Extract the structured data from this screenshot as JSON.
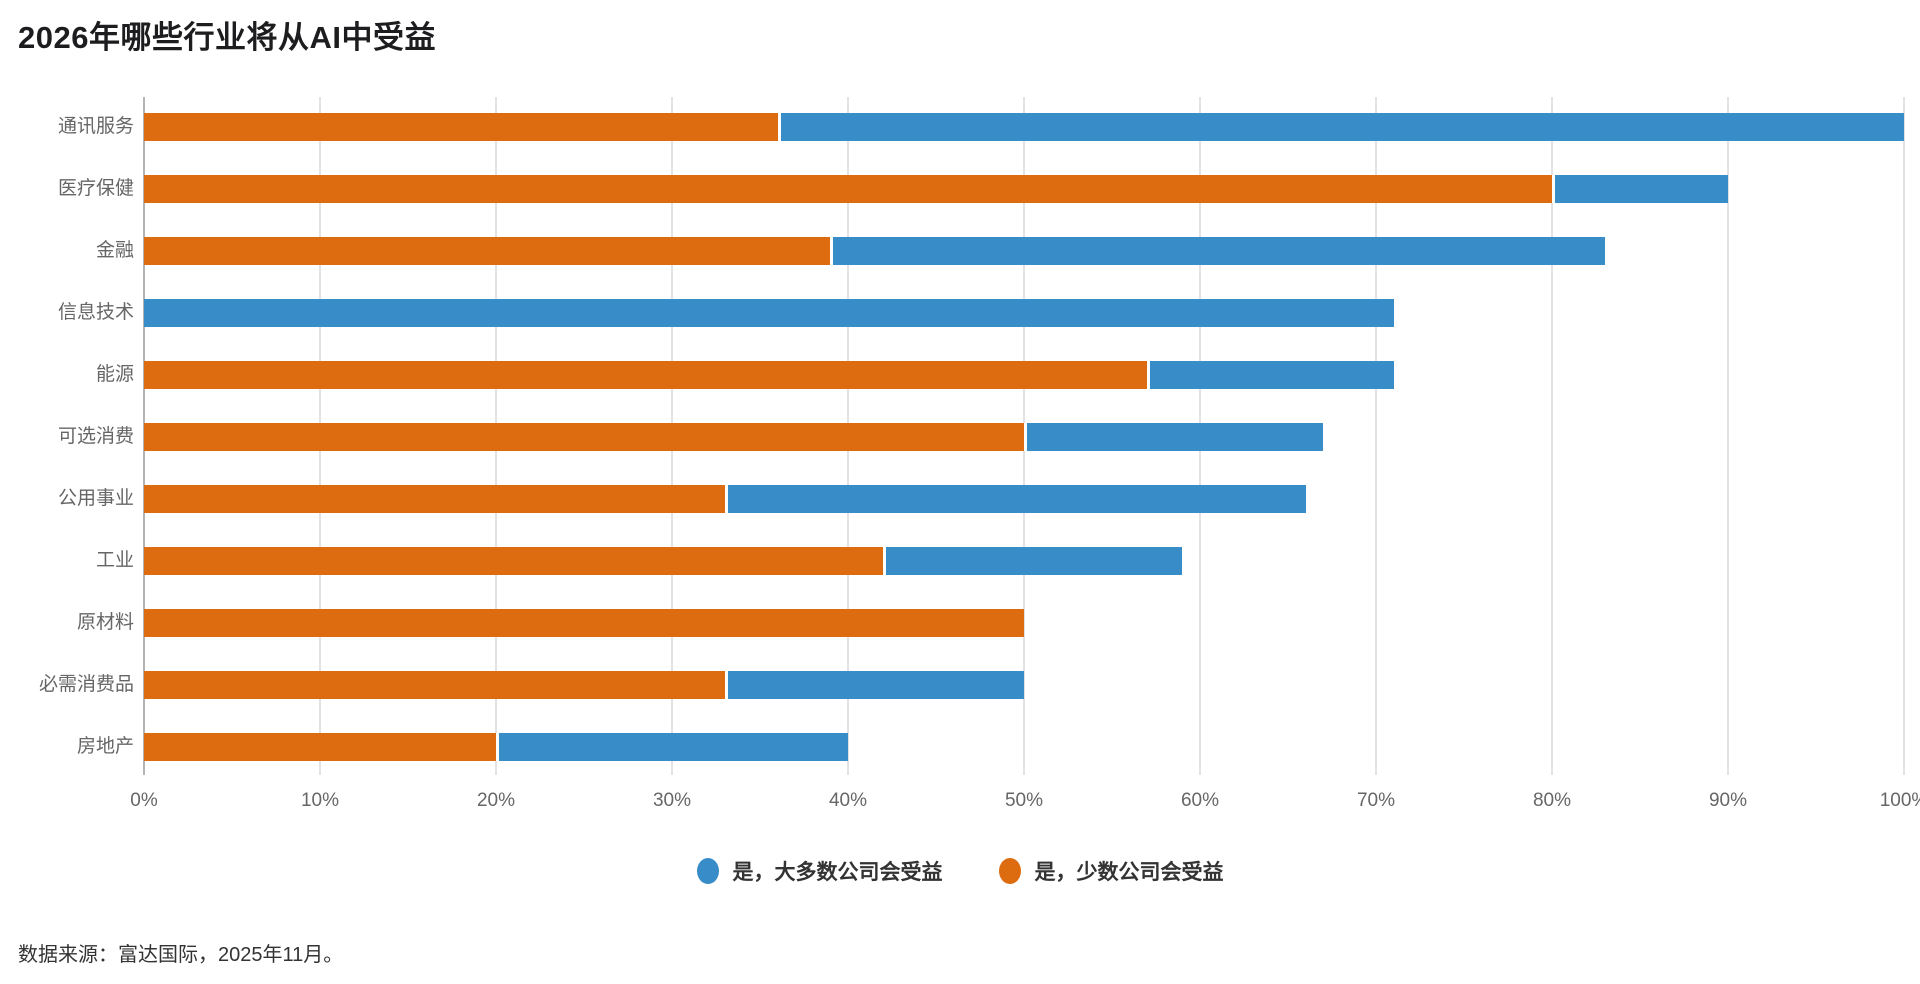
{
  "title": "2026年哪些行业将从AI中受益",
  "source": "数据来源：富达国际，2025年11月。",
  "colors": {
    "blue": "#388cc8",
    "orange": "#dd6b10",
    "gridline": "#e2e2e6",
    "axis_line": "#b3b3b8",
    "label_gray": "#666666",
    "title_dark": "#1d1d1f"
  },
  "legend": {
    "items": [
      {
        "label": "是，大多数公司会受益",
        "color": "#388cc8"
      },
      {
        "label": "是，少数公司会受益",
        "color": "#dd6b10"
      }
    ]
  },
  "chart_data": {
    "type": "bar",
    "orientation": "horizontal",
    "stacked": true,
    "title": "2026年哪些行业将从AI中受益",
    "xlabel": "",
    "ylabel": "",
    "xlim": [
      0,
      100
    ],
    "x_ticks": [
      "0%",
      "10%",
      "20%",
      "30%",
      "40%",
      "50%",
      "60%",
      "70%",
      "80%",
      "90%",
      "100%"
    ],
    "grid": "vertical",
    "legend_position": "bottom-center",
    "categories": [
      "通讯服务",
      "医疗保健",
      "金融",
      "信息技术",
      "能源",
      "可选消费",
      "公用事业",
      "工业",
      "原材料",
      "必需消费品",
      "房地产"
    ],
    "series": [
      {
        "name": "是，少数公司会受益",
        "color": "#dd6b10",
        "position": "left",
        "values": [
          36,
          80,
          39,
          0,
          57,
          50,
          33,
          42,
          50,
          33,
          20
        ]
      },
      {
        "name": "是，大多数公司会受益",
        "color": "#388cc8",
        "position": "right",
        "values": [
          64,
          10,
          44,
          71,
          14,
          17,
          33,
          17,
          0,
          17,
          20
        ]
      }
    ],
    "totals": [
      100,
      90,
      83,
      71,
      71,
      67,
      66,
      59,
      50,
      50,
      40
    ]
  }
}
